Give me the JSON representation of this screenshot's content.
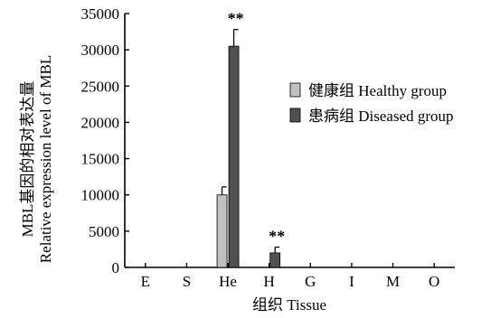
{
  "chart_data": {
    "type": "bar",
    "categories": [
      "E",
      "S",
      "He",
      "H",
      "G",
      "I",
      "M",
      "O"
    ],
    "series": [
      {
        "name": "健康组 Healthy group",
        "color": "#c0c0c0",
        "values": [
          0,
          0,
          10000,
          0,
          0,
          0,
          0,
          0
        ],
        "errors": [
          0,
          0,
          1100,
          0,
          0,
          0,
          0,
          0
        ],
        "annotations": [
          "",
          "",
          "",
          "",
          "",
          "",
          "",
          ""
        ]
      },
      {
        "name": "患病组 Diseased group",
        "color": "#505050",
        "values": [
          0,
          0,
          30500,
          2000,
          0,
          0,
          0,
          0
        ],
        "errors": [
          0,
          0,
          2300,
          800,
          0,
          0,
          0,
          0
        ],
        "annotations": [
          "",
          "",
          "**",
          "**",
          "",
          "",
          "",
          ""
        ]
      }
    ],
    "ylim": [
      0,
      35000
    ],
    "yticks": [
      "0",
      "5000",
      "10000",
      "15000",
      "20000",
      "25000",
      "30000",
      "35000"
    ],
    "xlabel": "组织 Tissue",
    "ylabel_lines": [
      "MBL基因的相对表达量",
      "Relative expression level of MBL"
    ],
    "legend_position": "right",
    "grid": false
  }
}
